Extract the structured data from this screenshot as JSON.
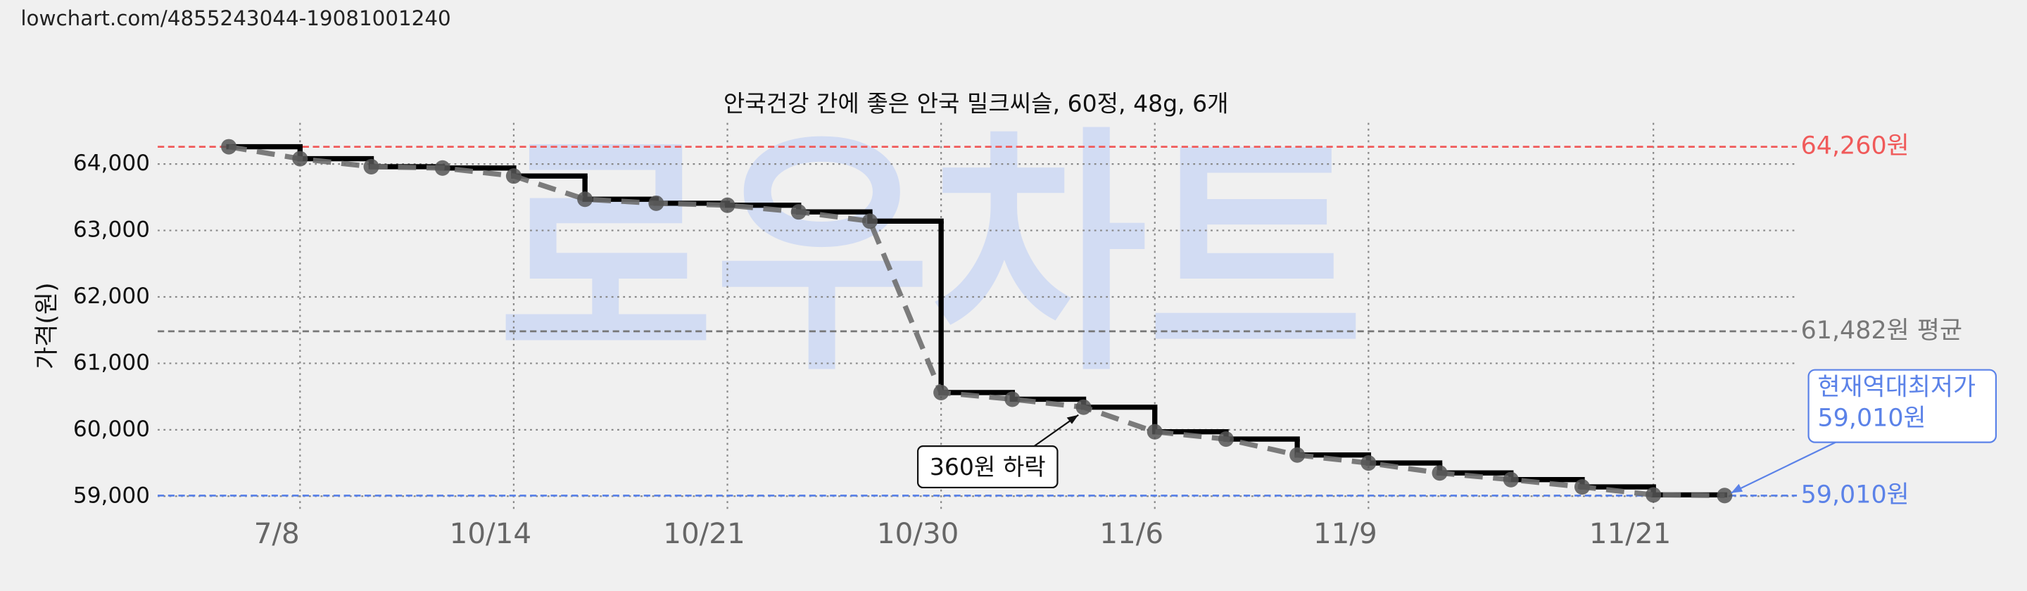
{
  "source": "lowchart.com/4855243044-19081001240",
  "chart_data": {
    "type": "line",
    "title": "안국건강 간에 좋은 안국 밀크씨슬, 60정, 48g, 6개",
    "y_label": "가격(원)",
    "watermark": "로우차트",
    "categories": [
      null,
      "7/8",
      null,
      null,
      "10/14",
      null,
      null,
      "10/21",
      null,
      null,
      "10/30",
      null,
      null,
      "11/6",
      null,
      null,
      "11/9",
      null,
      null,
      null,
      "11/21",
      null
    ],
    "values": [
      64260,
      64080,
      63960,
      63940,
      63820,
      63470,
      63410,
      63380,
      63280,
      63140,
      60560,
      60460,
      60340,
      59970,
      59860,
      59620,
      59500,
      59350,
      59250,
      59140,
      59020,
      59010
    ],
    "color": "#000000",
    "trend_color": "#6e6e6e",
    "marker_color": "#555555",
    "ylim": [
      58780,
      64620
    ],
    "yticks": [
      {
        "value": 59000,
        "label": "59,000"
      },
      {
        "value": 60000,
        "label": "60,000"
      },
      {
        "value": 61000,
        "label": "61,000"
      },
      {
        "value": 62000,
        "label": "62,000"
      },
      {
        "value": 63000,
        "label": "63,000"
      },
      {
        "value": 64000,
        "label": "64,000"
      }
    ],
    "grid": true,
    "reference_lines": [
      {
        "value": 64260,
        "label": "64,260원",
        "color": "#f05a5a"
      },
      {
        "value": 61482,
        "label": "61,482원 평균",
        "color": "#777777"
      },
      {
        "value": 59010,
        "label": "59,010원",
        "color": "#5b82e8"
      }
    ],
    "annotations": [
      {
        "lines": [
          "360원 하락"
        ]
      },
      {
        "lines": [
          "현재역대최저가",
          "59,010원"
        ]
      }
    ]
  }
}
